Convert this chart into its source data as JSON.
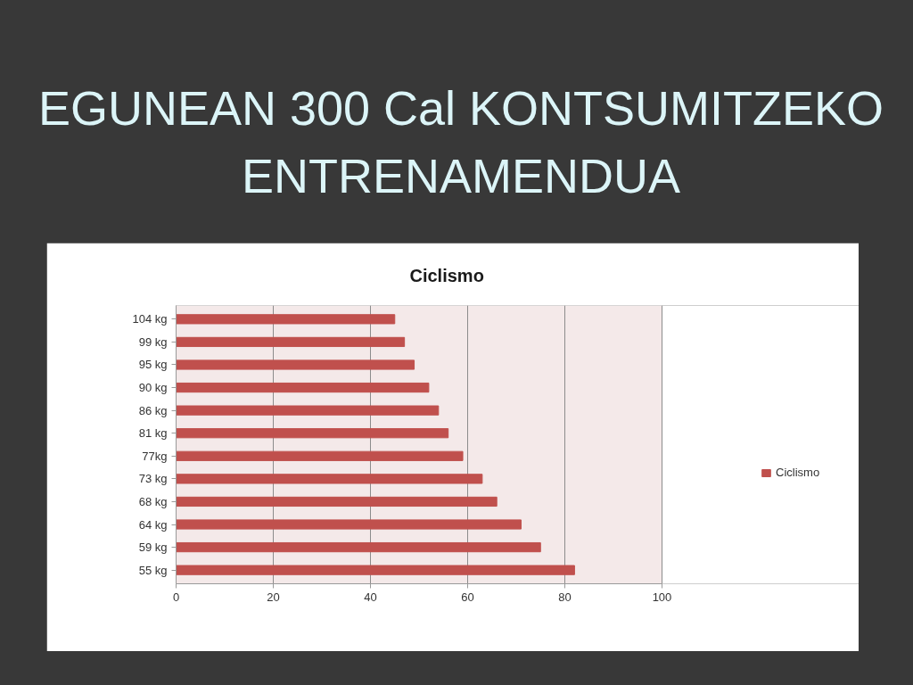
{
  "chart_data": {
    "type": "bar",
    "orientation": "horizontal",
    "title": "EGUNEAN 300 Cal KONTSUMITZEKO ENTRENAMENDUA",
    "subtitle": "Ciclismo",
    "categories": [
      "104 kg",
      "99 kg",
      "95 kg",
      "90 kg",
      "86 kg",
      "81 kg",
      "77kg",
      "73 kg",
      "68 kg",
      "64 kg",
      "59 kg",
      "55 kg"
    ],
    "series": [
      {
        "name": "Ciclismo",
        "color": "#c0504d",
        "values": [
          45,
          47,
          49,
          52,
          54,
          56,
          59,
          63,
          66,
          71,
          75,
          82
        ]
      }
    ],
    "xlim": [
      0,
      100
    ],
    "xticks": [
      0,
      20,
      40,
      60,
      80,
      100
    ],
    "grid": "x",
    "legend": "right"
  }
}
